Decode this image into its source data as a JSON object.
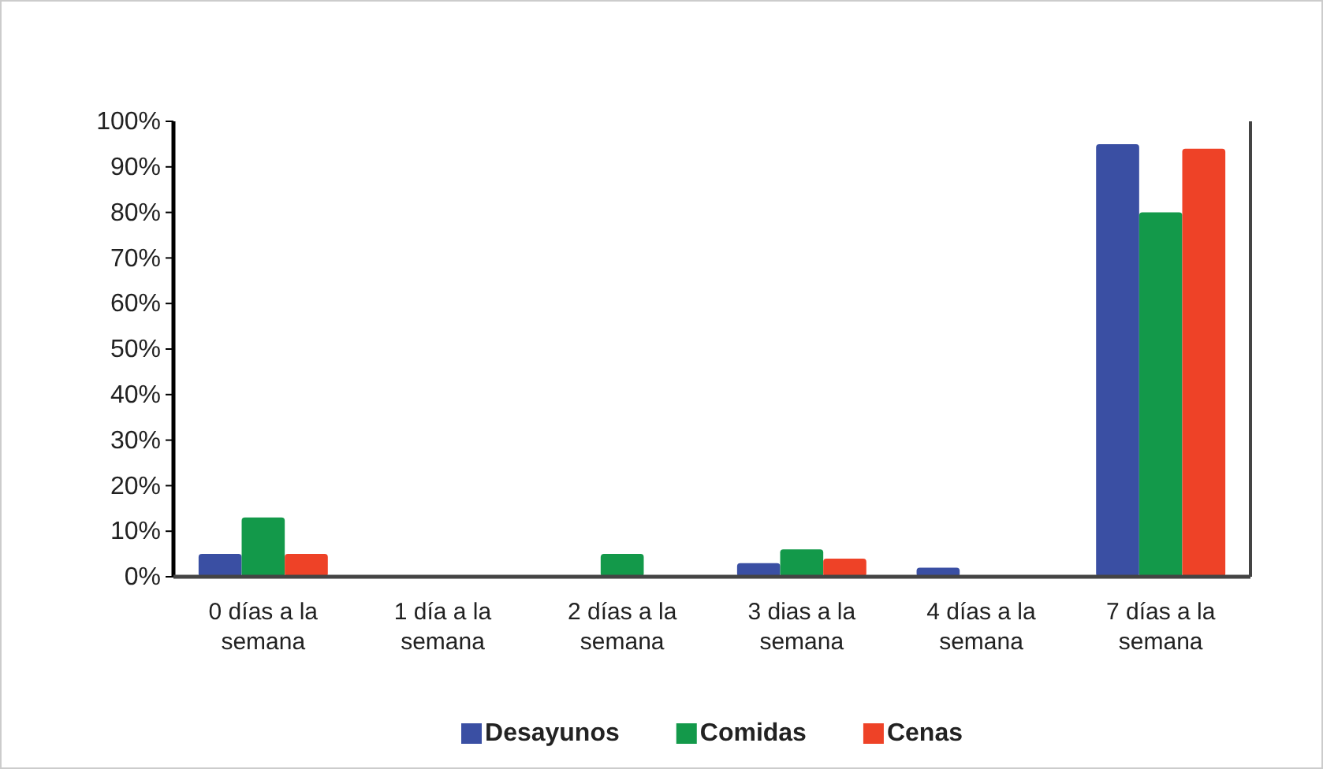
{
  "chart_data": {
    "type": "bar",
    "categories": [
      "0 días a la semana",
      "1 día a la semana",
      "2 días a la semana",
      "3 dias a la semana",
      "4 días a la semana",
      "7 días a la semana"
    ],
    "series": [
      {
        "name": "Desayunos",
        "color": "#3a4fa3",
        "values": [
          5,
          0,
          0,
          3,
          2,
          95
        ]
      },
      {
        "name": "Comidas",
        "color": "#13994a",
        "values": [
          13,
          0,
          5,
          6,
          0,
          80
        ]
      },
      {
        "name": "Cenas",
        "color": "#ee4227",
        "values": [
          5,
          0,
          0,
          4,
          0,
          94
        ]
      }
    ],
    "ylim": [
      0,
      100
    ],
    "yticks": [
      {
        "value": 0,
        "label": "0%"
      },
      {
        "value": 10,
        "label": "10%"
      },
      {
        "value": 20,
        "label": "20%"
      },
      {
        "value": 30,
        "label": "30%"
      },
      {
        "value": 40,
        "label": "40%"
      },
      {
        "value": 50,
        "label": "50%"
      },
      {
        "value": 60,
        "label": "60%"
      },
      {
        "value": 70,
        "label": "70%"
      },
      {
        "value": 80,
        "label": "80%"
      },
      {
        "value": 90,
        "label": "90%"
      },
      {
        "value": 100,
        "label": "100%"
      }
    ],
    "grid": false,
    "legend": "bottom"
  }
}
